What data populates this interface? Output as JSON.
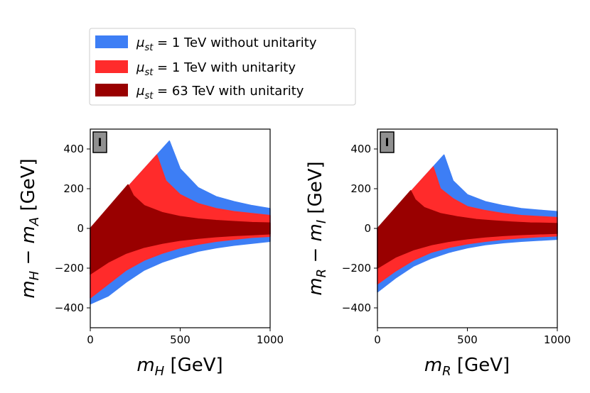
{
  "chart_data": [
    {
      "type": "area",
      "panel_tag": "I",
      "xlabel": {
        "main": "m",
        "sub": "H",
        "unit": " [GeV]"
      },
      "ylabel": {
        "m1": "m",
        "s1": "H",
        "op": " − ",
        "m2": "m",
        "s2": "A",
        "unit": " [GeV]"
      },
      "xlim": [
        0,
        1000
      ],
      "ylim": [
        -500,
        500
      ],
      "xticks": [
        0,
        500,
        1000
      ],
      "yticks": [
        -400,
        -200,
        0,
        200,
        400
      ],
      "series": [
        {
          "name": "mu_st = 1 TeV without unitarity",
          "color": "#3d7ef5",
          "peak": [
            440,
            440
          ],
          "upper": [
            [
              0,
              0
            ],
            [
              440,
              440
            ],
            [
              500,
              300
            ],
            [
              600,
              205
            ],
            [
              700,
              160
            ],
            [
              800,
              135
            ],
            [
              900,
              115
            ],
            [
              1000,
              100
            ]
          ],
          "lower": [
            [
              0,
              -380
            ],
            [
              100,
              -340
            ],
            [
              200,
              -270
            ],
            [
              300,
              -210
            ],
            [
              400,
              -170
            ],
            [
              500,
              -140
            ],
            [
              600,
              -115
            ],
            [
              700,
              -98
            ],
            [
              800,
              -85
            ],
            [
              900,
              -75
            ],
            [
              1000,
              -65
            ]
          ]
        },
        {
          "name": "mu_st = 1 TeV with unitarity",
          "color": "#ff2b2b",
          "peak": [
            370,
            370
          ],
          "upper": [
            [
              0,
              0
            ],
            [
              370,
              370
            ],
            [
              420,
              240
            ],
            [
              500,
              170
            ],
            [
              600,
              125
            ],
            [
              700,
              100
            ],
            [
              800,
              85
            ],
            [
              900,
              75
            ],
            [
              1000,
              65
            ]
          ],
          "lower": [
            [
              0,
              -350
            ],
            [
              100,
              -280
            ],
            [
              200,
              -210
            ],
            [
              300,
              -160
            ],
            [
              400,
              -125
            ],
            [
              500,
              -98
            ],
            [
              600,
              -80
            ],
            [
              700,
              -65
            ],
            [
              800,
              -55
            ],
            [
              900,
              -45
            ],
            [
              1000,
              -40
            ]
          ]
        },
        {
          "name": "mu_st = 63 TeV with unitarity",
          "color": "#990000",
          "peak": [
            210,
            220
          ],
          "upper": [
            [
              0,
              0
            ],
            [
              210,
              220
            ],
            [
              240,
              165
            ],
            [
              300,
              115
            ],
            [
              400,
              80
            ],
            [
              500,
              60
            ],
            [
              600,
              48
            ],
            [
              700,
              40
            ],
            [
              800,
              35
            ],
            [
              900,
              30
            ],
            [
              1000,
              28
            ]
          ],
          "lower": [
            [
              0,
              -230
            ],
            [
              100,
              -170
            ],
            [
              200,
              -125
            ],
            [
              300,
              -95
            ],
            [
              400,
              -75
            ],
            [
              500,
              -60
            ],
            [
              600,
              -50
            ],
            [
              700,
              -42
            ],
            [
              800,
              -36
            ],
            [
              900,
              -32
            ],
            [
              1000,
              -28
            ]
          ]
        }
      ]
    },
    {
      "type": "area",
      "panel_tag": "I",
      "xlabel": {
        "main": "m",
        "sub": "R",
        "unit": " [GeV]"
      },
      "ylabel": {
        "m1": "m",
        "s1": "R",
        "op": " − ",
        "m2": "m",
        "s2": "I",
        "unit": " [GeV]"
      },
      "xlim": [
        0,
        1000
      ],
      "ylim": [
        -500,
        500
      ],
      "xticks": [
        0,
        500,
        1000
      ],
      "yticks": [
        -400,
        -200,
        0,
        200,
        400
      ],
      "series": [
        {
          "name": "mu_st = 1 TeV without unitarity",
          "color": "#3d7ef5",
          "peak": [
            370,
            370
          ],
          "upper": [
            [
              0,
              0
            ],
            [
              370,
              370
            ],
            [
              420,
              240
            ],
            [
              500,
              170
            ],
            [
              600,
              135
            ],
            [
              700,
              115
            ],
            [
              800,
              100
            ],
            [
              900,
              92
            ],
            [
              1000,
              85
            ]
          ],
          "lower": [
            [
              0,
              -320
            ],
            [
              100,
              -250
            ],
            [
              200,
              -190
            ],
            [
              300,
              -150
            ],
            [
              400,
              -120
            ],
            [
              500,
              -98
            ],
            [
              600,
              -82
            ],
            [
              700,
              -72
            ],
            [
              800,
              -65
            ],
            [
              900,
              -60
            ],
            [
              1000,
              -55
            ]
          ]
        },
        {
          "name": "mu_st = 1 TeV with unitarity",
          "color": "#ff2b2b",
          "peak": [
            310,
            310
          ],
          "upper": [
            [
              0,
              0
            ],
            [
              310,
              310
            ],
            [
              350,
              200
            ],
            [
              420,
              150
            ],
            [
              500,
              110
            ],
            [
              600,
              90
            ],
            [
              700,
              75
            ],
            [
              800,
              65
            ],
            [
              900,
              60
            ],
            [
              1000,
              55
            ]
          ],
          "lower": [
            [
              0,
              -280
            ],
            [
              100,
              -215
            ],
            [
              200,
              -160
            ],
            [
              300,
              -120
            ],
            [
              400,
              -95
            ],
            [
              500,
              -78
            ],
            [
              600,
              -65
            ],
            [
              700,
              -55
            ],
            [
              800,
              -48
            ],
            [
              900,
              -42
            ],
            [
              1000,
              -38
            ]
          ]
        },
        {
          "name": "mu_st = 63 TeV with unitarity",
          "color": "#990000",
          "peak": [
            185,
            190
          ],
          "upper": [
            [
              0,
              0
            ],
            [
              185,
              190
            ],
            [
              210,
              145
            ],
            [
              260,
              105
            ],
            [
              350,
              75
            ],
            [
              450,
              58
            ],
            [
              550,
              45
            ],
            [
              650,
              38
            ],
            [
              750,
              32
            ],
            [
              850,
              28
            ],
            [
              1000,
              25
            ]
          ],
          "lower": [
            [
              0,
              -200
            ],
            [
              100,
              -145
            ],
            [
              200,
              -108
            ],
            [
              300,
              -82
            ],
            [
              400,
              -65
            ],
            [
              500,
              -52
            ],
            [
              600,
              -43
            ],
            [
              700,
              -36
            ],
            [
              800,
              -31
            ],
            [
              900,
              -28
            ],
            [
              1000,
              -25
            ]
          ]
        }
      ]
    }
  ],
  "legend": {
    "placement": "top-left",
    "entries": [
      {
        "sym": "μ",
        "sub": "st",
        "rest": " = 1 TeV without unitarity",
        "color": "#3d7ef5"
      },
      {
        "sym": "μ",
        "sub": "st",
        "rest": " = 1 TeV with unitarity",
        "color": "#ff2b2b"
      },
      {
        "sym": "μ",
        "sub": "st",
        "rest": " = 63 TeV with unitarity",
        "color": "#990000"
      }
    ]
  }
}
